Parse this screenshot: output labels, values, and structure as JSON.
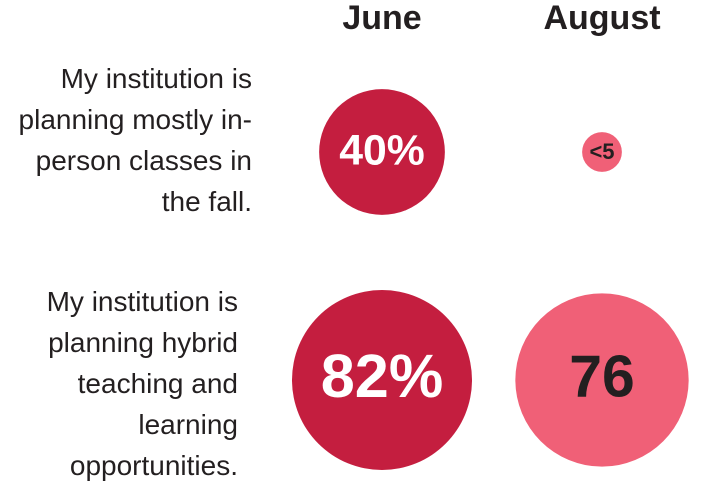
{
  "chart_data": {
    "type": "bubble",
    "categories": [
      "My institution is planning mostly in-person classes in the fall.",
      "My institution is planning hybrid teaching and learning opportunities."
    ],
    "series": [
      {
        "name": "June",
        "color": "#c41e3f",
        "label_color": "#ffffff",
        "values": [
          40,
          82
        ],
        "value_labels": [
          "40%",
          "82%"
        ]
      },
      {
        "name": "August",
        "color": "#f06077",
        "label_color": "#231f20",
        "values": [
          4,
          76
        ],
        "value_labels": [
          "<5",
          "76"
        ]
      }
    ]
  }
}
